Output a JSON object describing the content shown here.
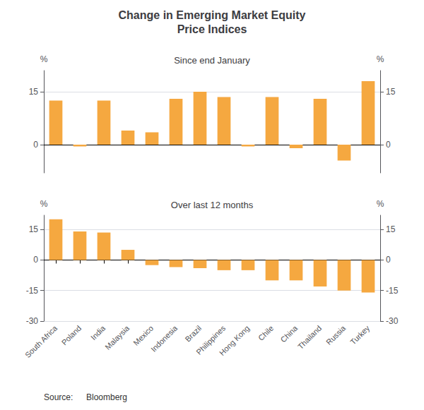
{
  "chart_data": [
    {
      "type": "bar",
      "title": "Change in Emerging Market Equity\nPrice Indices",
      "subtitle": "Since end January",
      "categories": [
        "South Africa",
        "Poland",
        "India",
        "Malaysia",
        "Mexico",
        "Indonesia",
        "Brazil",
        "Philippines",
        "Hong Kong",
        "Chile",
        "China",
        "Thailand",
        "Russia",
        "Turkey"
      ],
      "values": [
        12.5,
        -0.5,
        12.5,
        4.0,
        3.5,
        13.0,
        15.0,
        13.5,
        -0.5,
        13.5,
        -1.0,
        13.0,
        -4.5,
        18.0
      ],
      "color": "#F5A840",
      "ylabel": "%",
      "ylim": [
        -8,
        21
      ],
      "yticks": [
        0,
        15
      ],
      "y2label": "%",
      "y2lim": [
        -8,
        21
      ],
      "y2ticks": [
        0,
        15
      ],
      "grid": true,
      "tick_labels": "y"
    },
    {
      "type": "bar",
      "subtitle": "Over last 12 months",
      "categories": [
        "South Africa",
        "Poland",
        "India",
        "Malaysia",
        "Mexico",
        "Indonesia",
        "Brazil",
        "Philippines",
        "Hong Kong",
        "Chile",
        "China",
        "Thailand",
        "Russia",
        "Turkey"
      ],
      "values": [
        20.0,
        14.0,
        13.5,
        5.0,
        -2.5,
        -3.5,
        -4.0,
        -5.0,
        -5.0,
        -10.0,
        -10.0,
        -13.0,
        -15.0,
        -16.0
      ],
      "color": "#F5A840",
      "ylabel": "%",
      "ylim": [
        -30,
        22
      ],
      "yticks": [
        -30,
        -15,
        0,
        15
      ],
      "y2label": "%",
      "y2lim": [
        -30,
        22
      ],
      "y2ticks": [
        -30,
        -15,
        0,
        15
      ],
      "grid": true,
      "annotations": [
        "Source:",
        "Bloomberg"
      ]
    }
  ]
}
